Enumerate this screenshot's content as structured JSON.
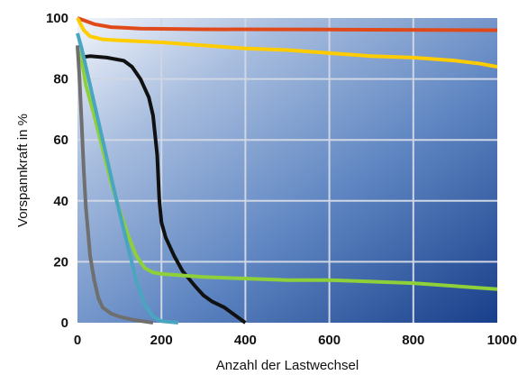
{
  "chart_data": {
    "type": "line",
    "xlabel": "Anzahl der Lastwechsel",
    "ylabel": "Vorspannkraft in %",
    "xlim": [
      0,
      1000
    ],
    "ylim": [
      0,
      100
    ],
    "xticks": [
      "0",
      "200",
      "400",
      "600",
      "800",
      "1000"
    ],
    "yticks": [
      "0",
      "20",
      "40",
      "60",
      "80",
      "100"
    ],
    "grid": true,
    "legend": "none",
    "background": "blue gradient, light top-left to dark bottom-right",
    "series": [
      {
        "color": "#e04a1a",
        "points": [
          [
            0,
            100
          ],
          [
            20,
            99
          ],
          [
            40,
            98
          ],
          [
            80,
            97
          ],
          [
            150,
            96.5
          ],
          [
            300,
            96.3
          ],
          [
            600,
            96.2
          ],
          [
            1000,
            96
          ]
        ]
      },
      {
        "color": "#ffcc00",
        "points": [
          [
            0,
            100
          ],
          [
            15,
            96
          ],
          [
            30,
            94
          ],
          [
            60,
            93
          ],
          [
            120,
            92.5
          ],
          [
            200,
            92
          ],
          [
            300,
            91
          ],
          [
            400,
            90
          ],
          [
            500,
            89.5
          ],
          [
            600,
            88.5
          ],
          [
            700,
            87.5
          ],
          [
            800,
            87
          ],
          [
            900,
            86
          ],
          [
            960,
            85
          ],
          [
            1000,
            84
          ]
        ]
      },
      {
        "color": "#111111",
        "points": [
          [
            0,
            87
          ],
          [
            30,
            87.5
          ],
          [
            70,
            87
          ],
          [
            110,
            86
          ],
          [
            130,
            84
          ],
          [
            150,
            80
          ],
          [
            170,
            74
          ],
          [
            180,
            68
          ],
          [
            190,
            55
          ],
          [
            195,
            40
          ],
          [
            200,
            33
          ],
          [
            210,
            28
          ],
          [
            230,
            22
          ],
          [
            250,
            17
          ],
          [
            280,
            12
          ],
          [
            300,
            9
          ],
          [
            320,
            7
          ],
          [
            350,
            5
          ],
          [
            370,
            3
          ],
          [
            390,
            1
          ],
          [
            400,
            0
          ]
        ]
      },
      {
        "color": "#8ed03a",
        "points": [
          [
            0,
            90
          ],
          [
            10,
            86
          ],
          [
            20,
            78
          ],
          [
            40,
            68
          ],
          [
            60,
            57
          ],
          [
            80,
            46
          ],
          [
            100,
            37
          ],
          [
            120,
            29
          ],
          [
            140,
            22
          ],
          [
            160,
            18
          ],
          [
            180,
            16.5
          ],
          [
            200,
            16
          ],
          [
            300,
            15
          ],
          [
            400,
            14.5
          ],
          [
            500,
            14
          ],
          [
            600,
            14
          ],
          [
            700,
            13.5
          ],
          [
            800,
            13
          ],
          [
            900,
            12
          ],
          [
            1000,
            11
          ]
        ]
      },
      {
        "color": "#4aa6c0",
        "points": [
          [
            0,
            95
          ],
          [
            10,
            90
          ],
          [
            30,
            78
          ],
          [
            60,
            60
          ],
          [
            90,
            42
          ],
          [
            120,
            25
          ],
          [
            140,
            14
          ],
          [
            160,
            6
          ],
          [
            180,
            2
          ],
          [
            200,
            0.5
          ],
          [
            240,
            0
          ]
        ]
      },
      {
        "color": "#6f6f6f",
        "points": [
          [
            0,
            91
          ],
          [
            5,
            80
          ],
          [
            10,
            65
          ],
          [
            15,
            50
          ],
          [
            20,
            38
          ],
          [
            25,
            30
          ],
          [
            30,
            22
          ],
          [
            40,
            14
          ],
          [
            50,
            8
          ],
          [
            60,
            5
          ],
          [
            80,
            3
          ],
          [
            100,
            2
          ],
          [
            130,
            1
          ],
          [
            180,
            0
          ]
        ]
      }
    ]
  }
}
